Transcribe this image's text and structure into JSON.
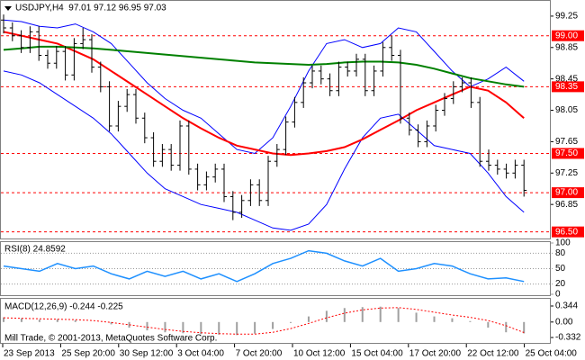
{
  "chart_data": {
    "type": "ohlc",
    "title": "USDJPY,H4  97.01 97.12 96.95 97.03",
    "xtick_labels": [
      "23 Sep 2013",
      "25 Sep 20:00",
      "30 Sep 12:00",
      "3 Oct 04:00",
      "7 Oct 20:00",
      "10 Oct 12:00",
      "15 Oct 04:00",
      "17 Oct 20:00",
      "22 Oct 12:00",
      "25 Oct 04:00"
    ],
    "bar_color": "#000000",
    "open": [
      99.2,
      99.1,
      99.0,
      98.85,
      99.05,
      98.75,
      98.65,
      98.8,
      98.5,
      98.9,
      98.95,
      98.6,
      98.35,
      97.85,
      98.1,
      98.25,
      97.95,
      97.7,
      97.4,
      97.55,
      97.35,
      97.85,
      97.3,
      97.1,
      97.2,
      97.3,
      96.95,
      96.75,
      96.9,
      97.1,
      96.9,
      97.4,
      97.55,
      97.9,
      98.15,
      98.4,
      98.55,
      98.45,
      98.3,
      98.6,
      98.55,
      98.7,
      98.3,
      98.55,
      98.85,
      98.75,
      97.95,
      97.8,
      97.65,
      97.85,
      98.05,
      98.2,
      98.35,
      98.4,
      98.15,
      97.4,
      97.35,
      97.3,
      97.25,
      97.35
    ],
    "high": [
      99.27,
      99.17,
      99.07,
      99.12,
      99.12,
      98.82,
      98.87,
      98.87,
      98.97,
      99.1,
      99.02,
      98.67,
      98.42,
      98.17,
      98.32,
      98.32,
      98.02,
      97.77,
      97.62,
      97.62,
      97.92,
      97.92,
      97.37,
      97.27,
      97.37,
      97.37,
      97.02,
      96.97,
      97.17,
      97.17,
      97.47,
      97.62,
      97.97,
      98.22,
      98.47,
      98.62,
      98.62,
      98.52,
      98.67,
      98.67,
      98.77,
      98.77,
      98.62,
      98.92,
      99.0,
      98.82,
      98.02,
      97.87,
      97.92,
      98.12,
      98.27,
      98.42,
      98.47,
      98.47,
      98.22,
      97.55,
      97.42,
      97.37,
      97.42,
      97.42
    ],
    "low": [
      99.03,
      98.93,
      98.78,
      98.78,
      98.68,
      98.58,
      98.58,
      98.43,
      98.43,
      98.83,
      98.53,
      98.28,
      97.78,
      97.78,
      98.03,
      97.88,
      97.63,
      97.33,
      97.33,
      97.28,
      97.28,
      97.23,
      97.03,
      97.03,
      97.13,
      96.88,
      96.65,
      96.68,
      96.83,
      96.83,
      96.83,
      97.33,
      97.48,
      97.83,
      98.08,
      98.33,
      98.38,
      98.23,
      98.23,
      98.48,
      98.48,
      98.23,
      98.23,
      98.48,
      98.68,
      97.88,
      97.73,
      97.58,
      97.58,
      97.78,
      97.98,
      98.13,
      98.28,
      98.08,
      97.33,
      97.28,
      97.23,
      97.18,
      97.18,
      96.95
    ],
    "close": [
      99.1,
      99.0,
      98.85,
      99.05,
      98.75,
      98.65,
      98.8,
      98.5,
      98.9,
      98.95,
      98.6,
      98.35,
      97.85,
      98.1,
      98.25,
      97.95,
      97.7,
      97.4,
      97.55,
      97.35,
      97.85,
      97.3,
      97.1,
      97.2,
      97.3,
      96.95,
      96.75,
      96.9,
      97.1,
      96.9,
      97.4,
      97.55,
      97.9,
      98.15,
      98.4,
      98.55,
      98.45,
      98.3,
      98.6,
      98.55,
      98.7,
      98.3,
      98.55,
      98.85,
      98.75,
      97.95,
      97.8,
      97.65,
      97.85,
      98.05,
      98.2,
      98.35,
      98.4,
      98.15,
      97.4,
      97.35,
      97.3,
      97.25,
      97.35,
      97.03
    ],
    "ylim": [
      96.416,
      99.444
    ],
    "yticks": [
      99.25,
      98.85,
      98.45,
      98.05,
      97.65,
      97.25,
      96.85
    ],
    "levels": {
      "color": "#ff0000",
      "values": [
        {
          "value": 99,
          "label": "99.00"
        },
        98.35,
        {
          "value": 97.5,
          "label": "97.50"
        },
        {
          "value": 97,
          "label": "97.00"
        },
        {
          "value": 96.5,
          "label": "96.50"
        }
      ]
    },
    "overlays": [
      {
        "color": "#0000ff",
        "values": [
          99.2,
          99.18,
          99.12,
          99.1,
          99.15,
          99.05,
          98.9,
          98.65,
          98.4,
          98.2,
          98.05,
          97.95,
          97.75,
          97.55,
          97.5,
          97.7,
          98.1,
          98.55,
          98.9,
          98.95,
          98.85,
          98.9,
          99.1,
          99.05,
          98.8,
          98.55,
          98.35,
          98.45,
          98.6,
          98.42
        ]
      },
      {
        "color": "#0000ff",
        "values": [
          98.55,
          98.5,
          98.4,
          98.25,
          98.1,
          97.95,
          97.75,
          97.5,
          97.25,
          97.05,
          96.95,
          96.85,
          96.8,
          96.75,
          96.65,
          96.55,
          96.52,
          96.6,
          96.85,
          97.3,
          97.7,
          97.95,
          98.0,
          97.8,
          97.6,
          97.55,
          97.5,
          97.25,
          96.95,
          96.75
        ]
      },
      {
        "color": "#ff0000",
        "values": [
          99.05,
          99.0,
          98.95,
          98.9,
          98.8,
          98.7,
          98.55,
          98.4,
          98.25,
          98.1,
          97.95,
          97.82,
          97.7,
          97.6,
          97.55,
          97.5,
          97.48,
          97.5,
          97.53,
          97.58,
          97.68,
          97.8,
          97.92,
          98.05,
          98.15,
          98.25,
          98.35,
          98.3,
          98.15,
          97.95
        ]
      },
      {
        "color": "#008000",
        "values": [
          98.82,
          98.84,
          98.86,
          98.86,
          98.85,
          98.84,
          98.82,
          98.8,
          98.78,
          98.76,
          98.74,
          98.72,
          98.7,
          98.68,
          98.66,
          98.65,
          98.64,
          98.63,
          98.64,
          98.66,
          98.67,
          98.67,
          98.66,
          98.63,
          98.58,
          98.52,
          98.46,
          98.42,
          98.38,
          98.35
        ]
      }
    ],
    "rsi": {
      "title": "RSI(8) 24.8592",
      "color": "#1e90ff",
      "ylim": [
        0,
        100
      ],
      "yticks": [
        100,
        80,
        50,
        20,
        0
      ],
      "values": [
        55,
        50,
        45,
        60,
        50,
        55,
        40,
        30,
        45,
        35,
        45,
        30,
        40,
        25,
        40,
        60,
        70,
        85,
        80,
        65,
        55,
        70,
        45,
        50,
        60,
        55,
        40,
        30,
        32,
        24.8592
      ]
    },
    "macd": {
      "title": "MACD(12,26,9) -0.244 -0.225",
      "ylim": [
        -0.448,
        0.479
      ],
      "yticks": [
        0.344,
        {
          "value": 0,
          "label": "0.00"
        },
        -0.332
      ],
      "histogram": {
        "color": "#a0a0a0",
        "values": [
          0.1,
          0.08,
          0.05,
          0.06,
          0.04,
          0.0,
          -0.05,
          -0.12,
          -0.18,
          -0.22,
          -0.24,
          -0.26,
          -0.27,
          -0.28,
          -0.25,
          -0.15,
          -0.02,
          0.12,
          0.24,
          0.3,
          0.32,
          0.33,
          0.3,
          0.2,
          0.12,
          0.08,
          0.02,
          -0.12,
          -0.22,
          -0.244
        ]
      },
      "signal": {
        "color": "#ff0000",
        "values": [
          0.09,
          0.08,
          0.07,
          0.06,
          0.05,
          0.03,
          -0.01,
          -0.06,
          -0.11,
          -0.16,
          -0.2,
          -0.23,
          -0.25,
          -0.26,
          -0.26,
          -0.22,
          -0.14,
          -0.03,
          0.09,
          0.19,
          0.26,
          0.3,
          0.31,
          0.27,
          0.21,
          0.15,
          0.1,
          0.03,
          -0.08,
          -0.225
        ]
      }
    },
    "footer": "Mill Trade, © 2001-2013, MetaQuotes Software Corp."
  }
}
